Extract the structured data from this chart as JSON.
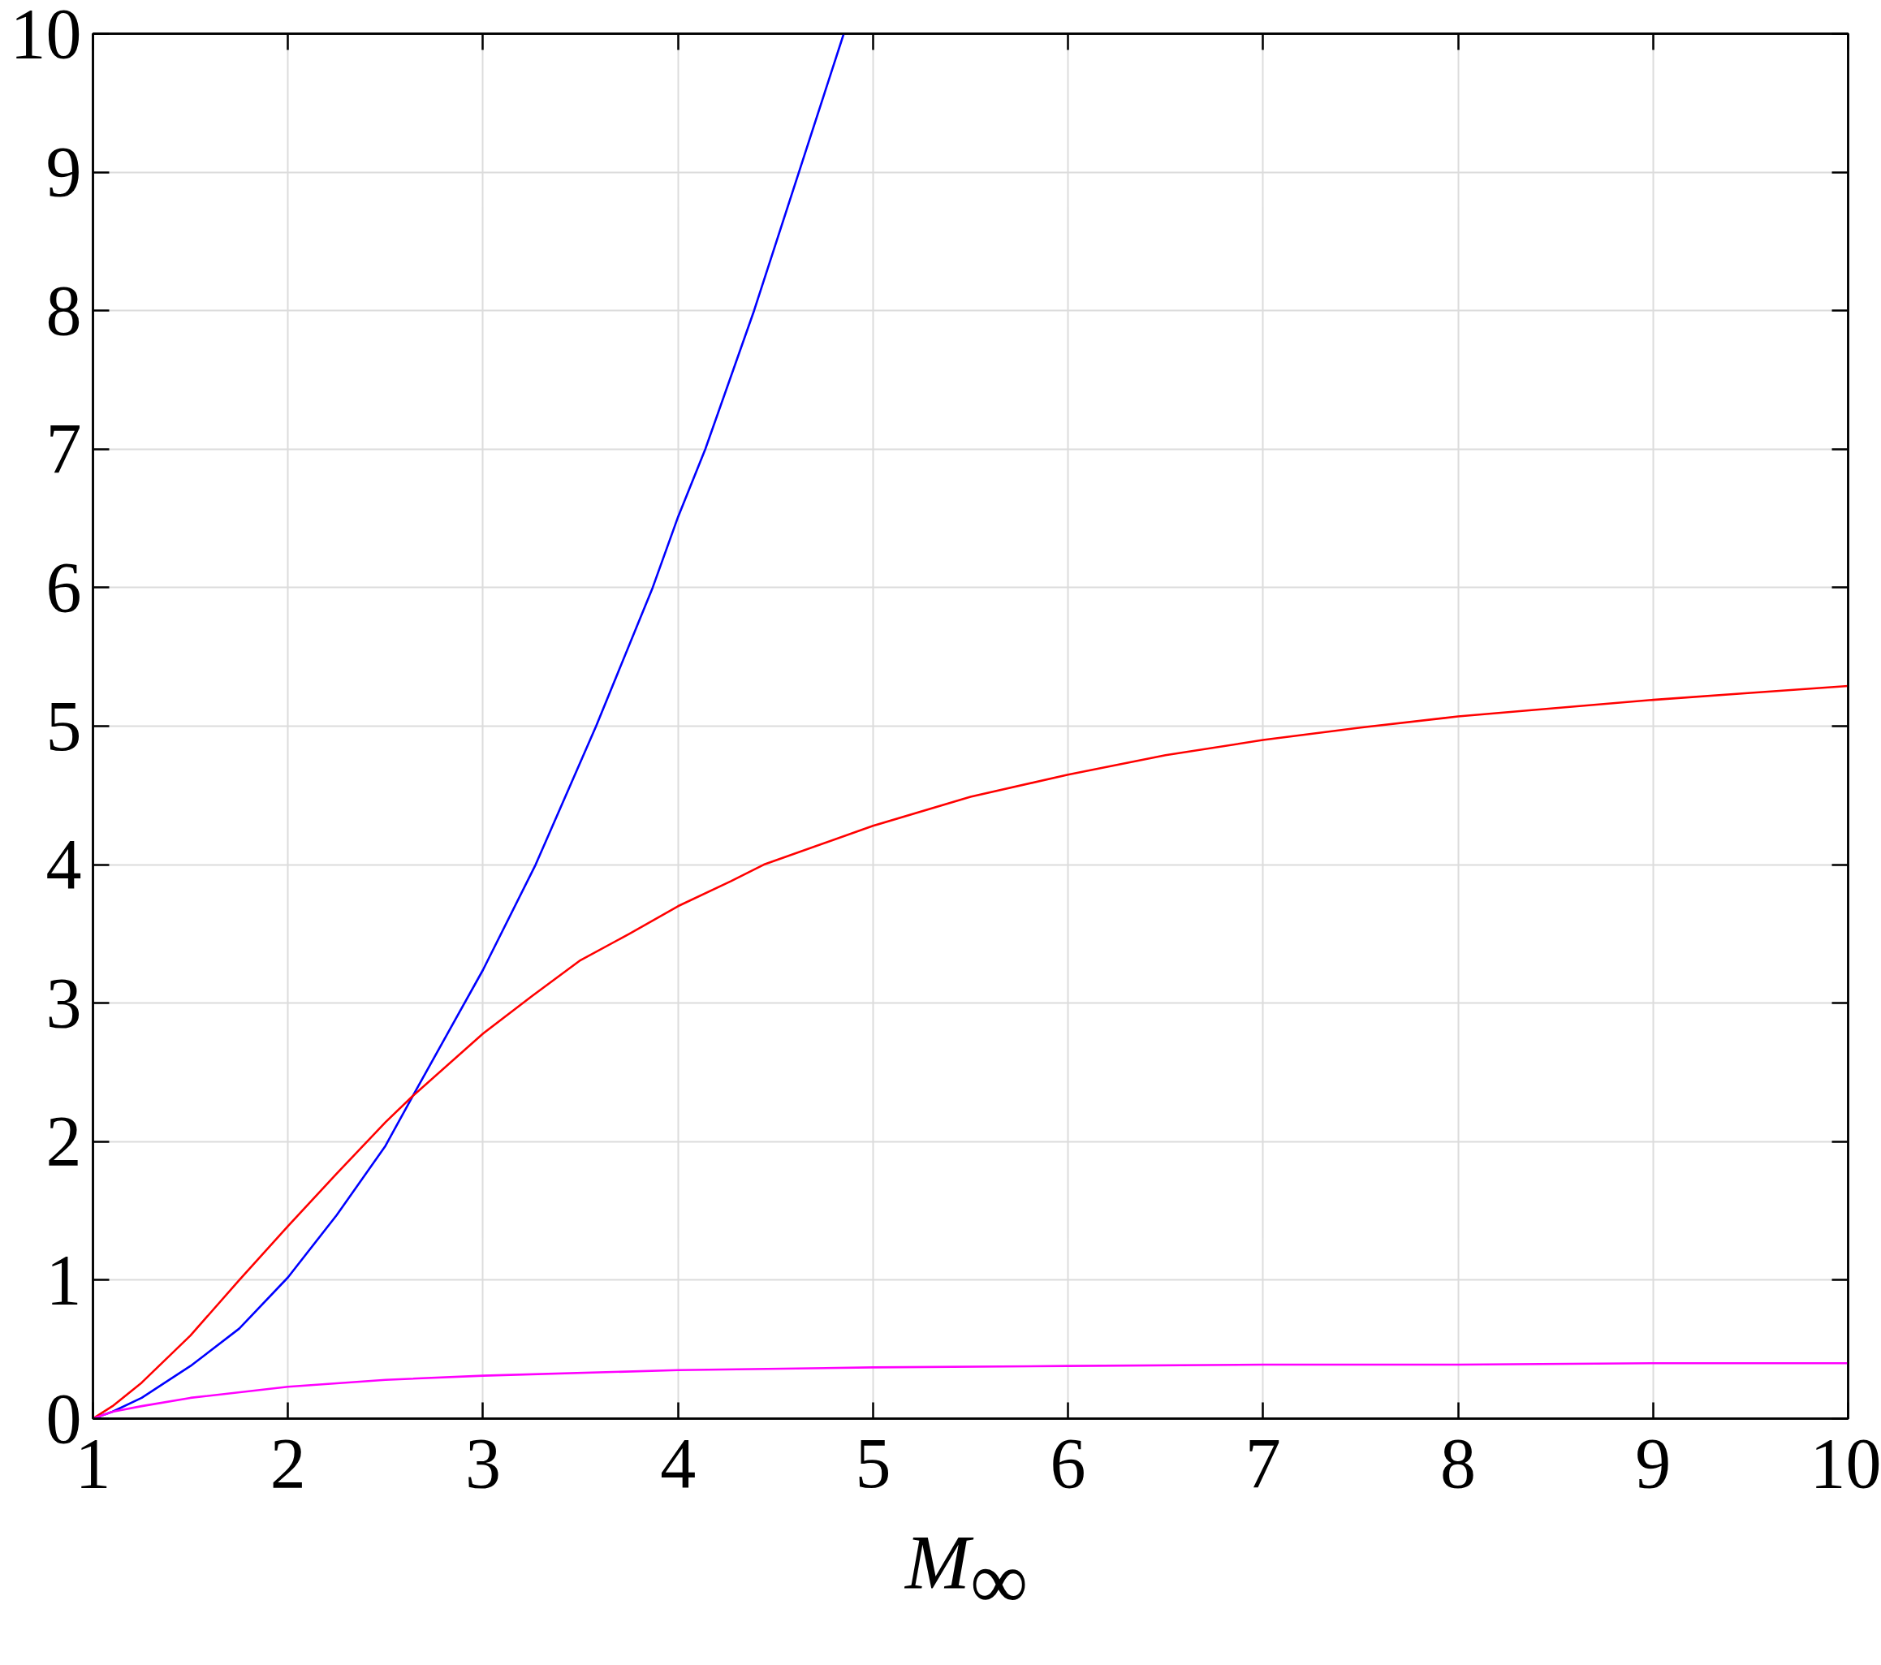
{
  "chart_data": {
    "type": "line",
    "xlabel": "M$_{∞}$",
    "xlim": [
      1,
      10
    ],
    "ylim": [
      0,
      10
    ],
    "xticks": [
      1,
      2,
      3,
      4,
      5,
      6,
      7,
      8,
      9,
      10
    ],
    "yticks": [
      0,
      1,
      2,
      3,
      4,
      5,
      6,
      7,
      8,
      9,
      10
    ],
    "grid": true,
    "line_style": "solid",
    "series": [
      {
        "color": "#0000ff",
        "x": [
          1,
          1.1,
          1.25,
          1.5,
          1.75,
          2,
          2.25,
          2.5,
          2.64,
          3,
          3.27,
          3.58,
          3.87,
          4,
          4.14,
          4.39,
          4.62,
          4.85
        ],
        "values": [
          0,
          0.05,
          0.15,
          0.38,
          0.65,
          1.02,
          1.47,
          1.97,
          2.33,
          3.24,
          4,
          5,
          6,
          6.51,
          7,
          8,
          9,
          10
        ]
      },
      {
        "color": "#ff0000",
        "x": [
          1,
          1.1,
          1.25,
          1.5,
          1.75,
          2,
          2.25,
          2.5,
          2.64,
          3,
          3.25,
          3.5,
          3.75,
          4,
          4.27,
          4.44,
          5,
          5.5,
          6,
          6.5,
          7,
          7.5,
          8,
          8.5,
          9,
          9.5,
          10
        ],
        "values": [
          0,
          0.09,
          0.26,
          0.6,
          1.0,
          1.39,
          1.77,
          2.14,
          2.33,
          2.78,
          3.05,
          3.31,
          3.5,
          3.7,
          3.88,
          4.0,
          4.28,
          4.49,
          4.65,
          4.79,
          4.9,
          4.99,
          5.07,
          5.13,
          5.19,
          5.24,
          5.29
        ]
      },
      {
        "color": "#ff00ff",
        "x": [
          1,
          1.1,
          1.25,
          1.5,
          2,
          2.5,
          3,
          4,
          5,
          6,
          7,
          8,
          9,
          10
        ],
        "values": [
          0,
          0.05,
          0.09,
          0.15,
          0.23,
          0.28,
          0.31,
          0.35,
          0.37,
          0.38,
          0.39,
          0.39,
          0.4,
          0.4
        ]
      }
    ]
  }
}
